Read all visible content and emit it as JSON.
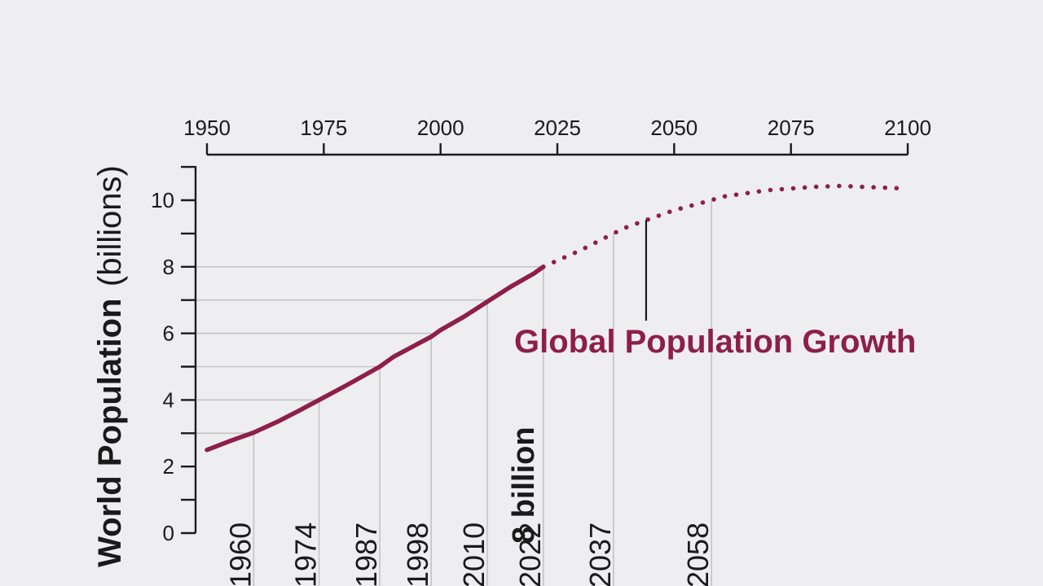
{
  "chart_data": {
    "type": "line",
    "title": "",
    "xlabel": "",
    "ylabel": {
      "bold": "World Population",
      "normal": "(billions)"
    },
    "xlim": [
      1950,
      2100
    ],
    "ylim": [
      0,
      11
    ],
    "x_ticks": [
      1950,
      1975,
      2000,
      2025,
      2050,
      2075,
      2100
    ],
    "x_axis_position": "top",
    "y_ticks": [
      0,
      2,
      4,
      6,
      8,
      10
    ],
    "series": [
      {
        "style": "solid",
        "x": [
          1950,
          1955,
          1960,
          1965,
          1970,
          1974,
          1980,
          1987,
          1990,
          1998,
          2000,
          2005,
          2010,
          2015,
          2020,
          2022
        ],
        "y": [
          2.5,
          2.77,
          3.02,
          3.34,
          3.7,
          4.0,
          4.45,
          5.0,
          5.3,
          5.9,
          6.1,
          6.5,
          6.95,
          7.4,
          7.8,
          8.0
        ]
      },
      {
        "style": "dotted",
        "x": [
          2022,
          2030,
          2037,
          2040,
          2050,
          2058,
          2060,
          2070,
          2080,
          2086,
          2090,
          2100
        ],
        "y": [
          8.0,
          8.5,
          9.0,
          9.2,
          9.7,
          10.0,
          10.1,
          10.3,
          10.4,
          10.43,
          10.4,
          10.35
        ]
      }
    ],
    "milestones": [
      {
        "year": 1960,
        "value": 3,
        "label": "1960"
      },
      {
        "year": 1974,
        "value": 4,
        "label": "1974"
      },
      {
        "year": 1987,
        "value": 5,
        "label": "1987"
      },
      {
        "year": 1998,
        "value": 6,
        "label": "1998"
      },
      {
        "year": 2010,
        "value": 7,
        "label": "2010"
      },
      {
        "year": 2022,
        "value": 8,
        "label": "2022"
      },
      {
        "year": 2037,
        "value": 9,
        "label": "2037"
      },
      {
        "year": 2058,
        "value": 10,
        "label": "2058"
      }
    ],
    "highlight_label": "8 billion",
    "annotation": {
      "text": "Global Population Growth",
      "pointer_year": 2044,
      "pointer_value": 9.45
    },
    "colors": {
      "line": "#8e1e4a",
      "annotation": "#8e1e4a",
      "axis": "#1a1a1a",
      "grid": "#c4c4c6",
      "background": "#eeeef0"
    }
  }
}
